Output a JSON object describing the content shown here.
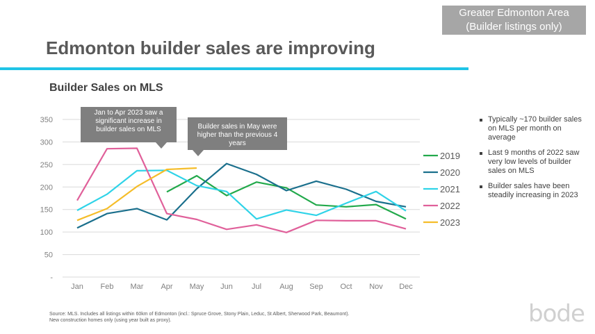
{
  "header": {
    "region_line1": "Greater Edmonton Area",
    "region_line2": "(Builder listings only)",
    "title": "Edmonton builder sales are improving",
    "chart_title": "Builder Sales on MLS"
  },
  "callouts": {
    "first": "Jan to Apr 2023 saw a significant increase in builder sales on MLS",
    "second": "Builder sales in May were higher than the previous 4 years"
  },
  "bullets": [
    "Typically ~170 builder sales on MLS per month on average",
    "Last 9 months of 2022 saw very low levels of builder sales on MLS",
    "Builder sales have been steadily increasing in 2023"
  ],
  "source": {
    "line1": "Source: MLS. Includes all listings within 60km of Edmonton (incl.: Spruce Grove, Stony Plain, Leduc, St Albert, Sherwood Park, Beaumont).",
    "line2": "New construction homes only (using year built as proxy)."
  },
  "logo": "bode",
  "colors": {
    "accent_rule": "#1fc4e6",
    "region_box": "#a6a6a6",
    "callout": "#7f7f7f"
  },
  "chart_data": {
    "type": "line",
    "title": "Builder Sales on MLS",
    "categories": [
      "Jan",
      "Feb",
      "Mar",
      "Apr",
      "May",
      "Jun",
      "Jul",
      "Aug",
      "Sep",
      "Oct",
      "Nov",
      "Dec"
    ],
    "y_ticks": [
      "-",
      "50",
      "100",
      "150",
      "200",
      "250",
      "300",
      "350"
    ],
    "ylim": [
      0,
      350
    ],
    "grid": true,
    "legend_position": "right",
    "series": [
      {
        "name": "2019",
        "color": "#22a94b",
        "values": [
          null,
          null,
          null,
          189,
          225,
          181,
          211,
          198,
          160,
          156,
          161,
          129
        ]
      },
      {
        "name": "2020",
        "color": "#1a6f8c",
        "values": [
          109,
          141,
          152,
          127,
          196,
          252,
          228,
          192,
          213,
          195,
          168,
          156
        ]
      },
      {
        "name": "2021",
        "color": "#2fd3e8",
        "values": [
          148,
          184,
          236,
          237,
          203,
          190,
          129,
          149,
          137,
          164,
          190,
          147
        ]
      },
      {
        "name": "2022",
        "color": "#e0609a",
        "values": [
          170,
          285,
          286,
          141,
          128,
          106,
          116,
          99,
          126,
          125,
          125,
          107
        ]
      },
      {
        "name": "2023",
        "color": "#f5bd29",
        "values": [
          126,
          152,
          201,
          239,
          242,
          null,
          null,
          null,
          null,
          null,
          null,
          null
        ]
      }
    ]
  }
}
